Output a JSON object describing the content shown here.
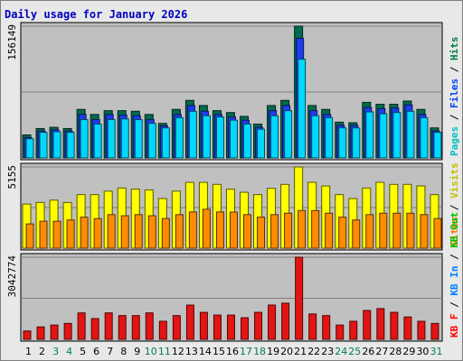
{
  "chart_data": {
    "type": "bar",
    "title": "Daily usage for January 2026",
    "categories": [
      "1",
      "2",
      "3",
      "4",
      "5",
      "6",
      "7",
      "8",
      "9",
      "10",
      "11",
      "12",
      "13",
      "14",
      "15",
      "16",
      "17",
      "18",
      "19",
      "20",
      "21",
      "22",
      "23",
      "24",
      "25",
      "26",
      "27",
      "28",
      "29",
      "30",
      "31"
    ],
    "weekend_days": [
      "3",
      "4",
      "10",
      "11",
      "17",
      "18",
      "24",
      "25",
      "31"
    ],
    "panels": [
      {
        "name": "hits-files-pages",
        "y_max_label": "156149",
        "ylim": [
          0,
          156149
        ],
        "legend": [
          {
            "text": "Pages",
            "color": "#00c0c0"
          },
          {
            "text": " / ",
            "color": "#000000"
          },
          {
            "text": "Files",
            "color": "#0040ff"
          },
          {
            "text": " / ",
            "color": "#000000"
          },
          {
            "text": "Hits",
            "color": "#008040"
          }
        ],
        "series": [
          {
            "name": "Hits",
            "color": "#006a4e",
            "values": [
              27300,
              34800,
              36300,
              34800,
              57500,
              51500,
              56000,
              56000,
              55300,
              51500,
              40900,
              57500,
              68200,
              62100,
              56000,
              53800,
              49200,
              40100,
              62100,
              68200,
              156149,
              62100,
              57500,
              42400,
              41700,
              65900,
              63600,
              63600,
              67400,
              57500,
              35600
            ]
          },
          {
            "name": "Files",
            "color": "#1e3cf0",
            "values": [
              24200,
              31800,
              33300,
              31800,
              51500,
              45400,
              51500,
              50700,
              50000,
              45400,
              37900,
              51500,
              62100,
              55300,
              51500,
              48500,
              44700,
              36300,
              56000,
              62100,
              141800,
              56000,
              51500,
              38700,
              38700,
              59800,
              58300,
              59100,
              62900,
              51500,
              31800
            ]
          },
          {
            "name": "Pages",
            "color": "#00d8ff",
            "values": [
              22700,
              30300,
              31000,
              30300,
              45400,
              40100,
              45400,
              46200,
              45400,
              40900,
              35600,
              47700,
              55300,
              50000,
              48500,
              44700,
              40100,
              34100,
              50000,
              56000,
              117000,
              50000,
              47700,
              35600,
              35600,
              54500,
              52300,
              53800,
              55300,
              47700,
              30300
            ]
          }
        ]
      },
      {
        "name": "visits-sites",
        "y_max_label": "5155",
        "ylim": [
          0,
          5155
        ],
        "legend": [
          {
            "text": "Sites",
            "color": "#ff8000"
          },
          {
            "text": " / ",
            "color": "#000000"
          },
          {
            "text": "Visits",
            "color": "#c0c000"
          }
        ],
        "series": [
          {
            "name": "Visits",
            "color": "#ffff00",
            "values": [
              2800,
              2900,
              3050,
              2900,
              3400,
              3400,
              3620,
              3820,
              3750,
              3700,
              3150,
              3620,
              4180,
              4180,
              4050,
              3750,
              3550,
              3400,
              3800,
              4050,
              5155,
              4180,
              3950,
              3400,
              3150,
              3820,
              4180,
              4050,
              4050,
              3950,
              3400
            ]
          },
          {
            "name": "Sites",
            "color": "#ff8c00",
            "values": [
              1540,
              1710,
              1710,
              1790,
              1970,
              1880,
              2130,
              2060,
              2130,
              2060,
              1880,
              2130,
              2300,
              2470,
              2300,
              2290,
              2130,
              1970,
              2130,
              2220,
              2390,
              2390,
              2220,
              1970,
              1790,
              2130,
              2220,
              2220,
              2220,
              2130,
              1880
            ]
          }
        ]
      },
      {
        "name": "kbytes",
        "y_max_label": "3042774",
        "ylim": [
          0,
          3042774
        ],
        "legend": [
          {
            "text": "KB F",
            "color": "#ff0000"
          },
          {
            "text": " / ",
            "color": "#000000"
          },
          {
            "text": "KB In",
            "color": "#0080ff"
          },
          {
            "text": " / ",
            "color": "#000000"
          },
          {
            "text": "KB Out",
            "color": "#00c000"
          }
        ],
        "series": [
          {
            "name": "KB F",
            "color": "#e41414",
            "values": [
              310000,
              460000,
              530000,
              590000,
              980000,
              770000,
              980000,
              880000,
              880000,
              980000,
              670000,
              880000,
              1270000,
              1000000,
              900000,
              900000,
              800000,
              1000000,
              1270000,
              1340000,
              3042774,
              940000,
              880000,
              530000,
              670000,
              1070000,
              1140000,
              1000000,
              830000,
              670000,
              590000
            ]
          }
        ]
      }
    ]
  }
}
